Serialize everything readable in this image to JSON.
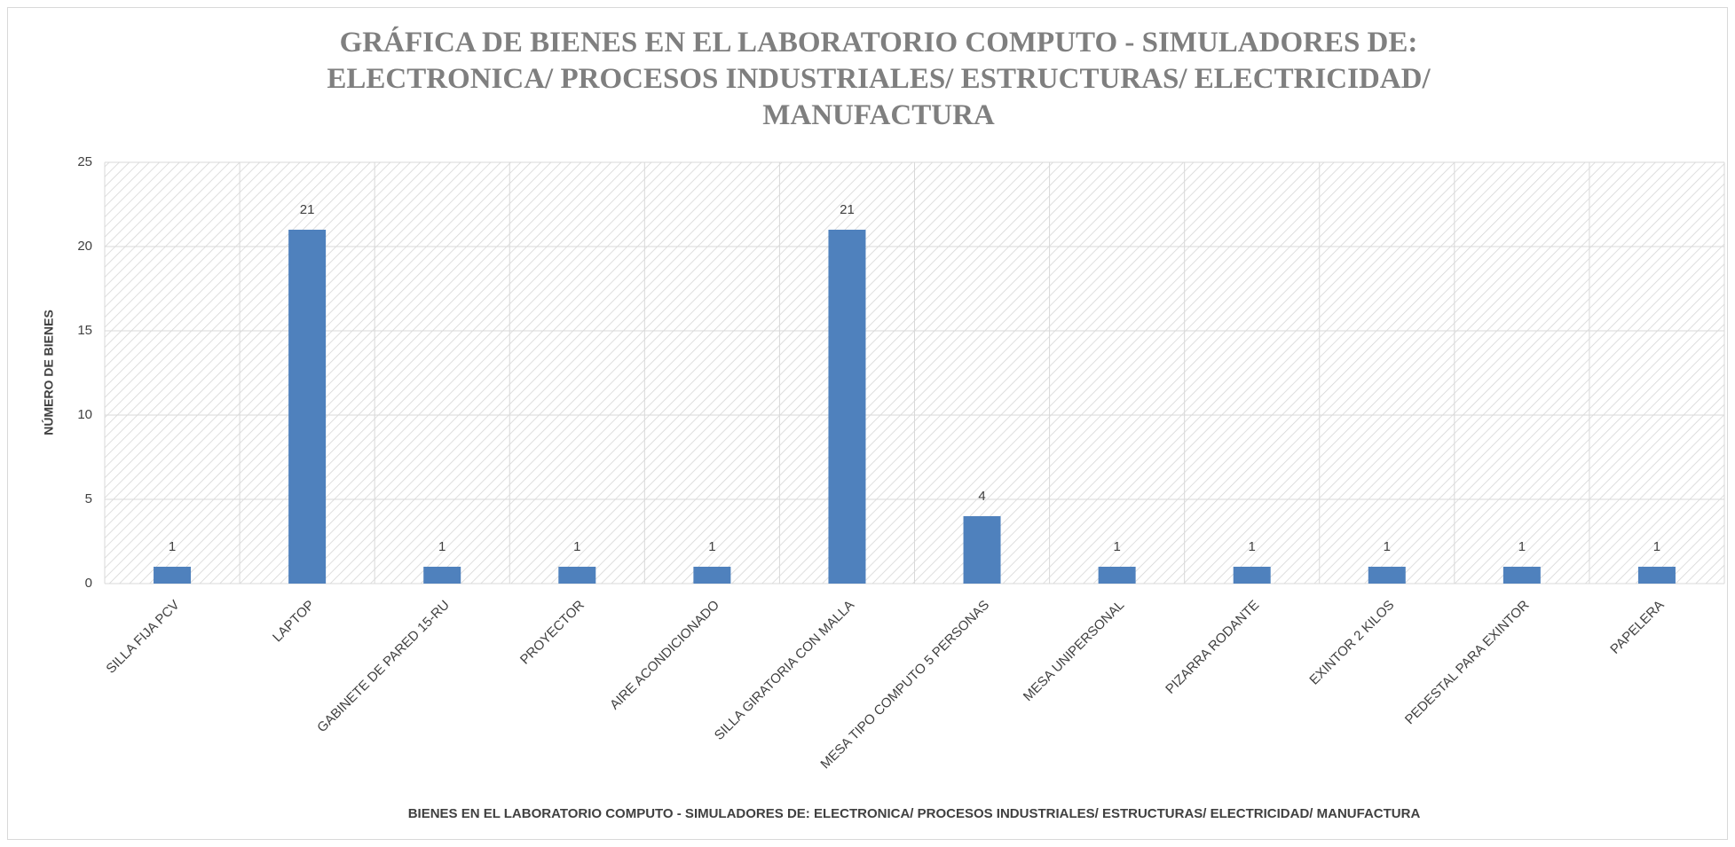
{
  "chart_data": {
    "type": "bar",
    "title": "GRÁFICA DE BIENES EN EL LABORATORIO COMPUTO - SIMULADORES DE: ELECTRONICA/ PROCESOS INDUSTRIALES/ ESTRUCTURAS/ ELECTRICIDAD/ MANUFACTURA",
    "x_label": "BIENES EN EL LABORATORIO COMPUTO - SIMULADORES DE: ELECTRONICA/ PROCESOS INDUSTRIALES/ ESTRUCTURAS/ ELECTRICIDAD/ MANUFACTURA",
    "y_label": "NÚMERO DE BIENES",
    "categories": [
      "SILLA FIJA PCV",
      "LAPTOP",
      "GABINETE DE PARED 15-RU",
      "PROYECTOR",
      "AIRE ACONDICIONADO",
      "SILLA GIRATORIA CON MALLA",
      "MESA TIPO COMPUTO 5 PERSONAS",
      "MESA UNIPERSONAL",
      "PIZARRA RODANTE",
      "EXINTOR 2 KILOS",
      "PEDESTAL PARA EXINTOR",
      "PAPELERA"
    ],
    "values": [
      1,
      21,
      1,
      1,
      1,
      21,
      4,
      1,
      1,
      1,
      1,
      1
    ],
    "color": "#4f81bd",
    "ylim": [
      0,
      25
    ],
    "yticks": [
      0,
      5,
      10,
      15,
      20,
      25
    ],
    "grid": true
  }
}
